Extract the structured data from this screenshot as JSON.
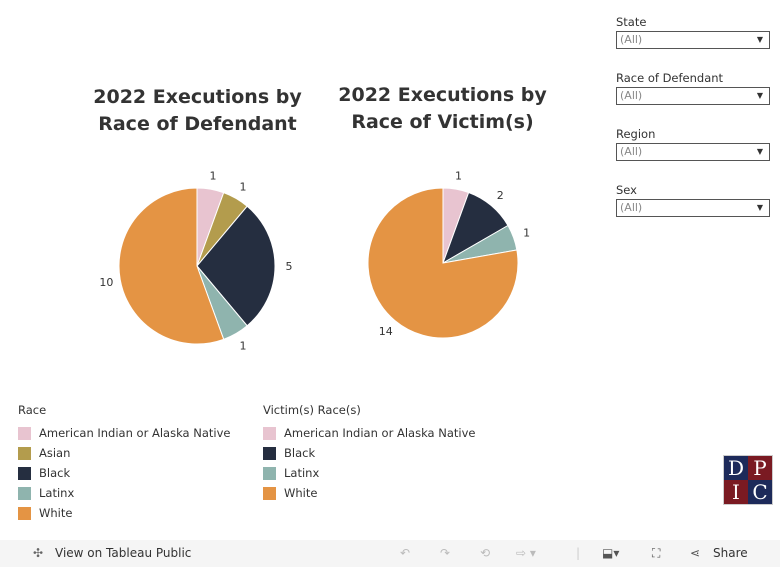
{
  "chart_data": [
    {
      "type": "pie",
      "title": "2022 Executions by Race of Defendant",
      "legend_title": "Race",
      "legend_placement": "bottom-left",
      "categories": [
        "American Indian or Alaska Native",
        "Asian",
        "Black",
        "Latinx",
        "White"
      ],
      "values": [
        1,
        1,
        5,
        1,
        10
      ],
      "colors": [
        "#e8c4d0",
        "#b39c4d",
        "#252e40",
        "#8fb4ae",
        "#e49444"
      ]
    },
    {
      "type": "pie",
      "title": "2022 Executions by Race of Victim(s)",
      "legend_title": "Victim(s) Race(s)",
      "legend_placement": "bottom",
      "categories": [
        "American Indian or Alaska Native",
        "Black",
        "Latinx",
        "White"
      ],
      "values": [
        1,
        2,
        1,
        14
      ],
      "colors": [
        "#e8c4d0",
        "#252e40",
        "#8fb4ae",
        "#e49444"
      ]
    }
  ],
  "titles": {
    "left": [
      "2022 Executions by",
      "Race of Defendant"
    ],
    "right": [
      "2022 Executions by",
      "Race of Victim(s)"
    ]
  },
  "filters": [
    {
      "label": "State",
      "value": "(All)"
    },
    {
      "label": "Race of Defendant",
      "value": "(All)"
    },
    {
      "label": "Region",
      "value": "(All)"
    },
    {
      "label": "Sex",
      "value": "(All)"
    }
  ],
  "logo": {
    "letters": [
      "D",
      "P",
      "I",
      "C"
    ]
  },
  "toolbar": {
    "view_label": "View on Tableau Public",
    "share_label": "Share"
  }
}
